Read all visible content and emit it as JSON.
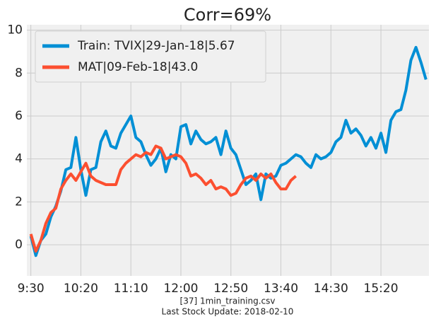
{
  "chart_data": {
    "type": "line",
    "title": "Corr=69%",
    "xlim": [
      566,
      968
    ],
    "ylim": [
      -1.45,
      10.25
    ],
    "xticks": [
      {
        "value": 570,
        "label": "9:30"
      },
      {
        "value": 620,
        "label": "10:20"
      },
      {
        "value": 670,
        "label": "11:10"
      },
      {
        "value": 720,
        "label": "12:00"
      },
      {
        "value": 770,
        "label": "12:50"
      },
      {
        "value": 820,
        "label": "13:40"
      },
      {
        "value": 870,
        "label": "14:30"
      },
      {
        "value": 920,
        "label": "15:20"
      }
    ],
    "yticks": [
      0,
      2,
      4,
      6,
      8,
      10
    ],
    "grid": true,
    "legend": "upper left",
    "series": [
      {
        "name": "Train: TVIX|29-Jan-18|5.67",
        "color": "#008fd5",
        "x": [
          570,
          575,
          580,
          585,
          590,
          595,
          600,
          605,
          610,
          615,
          620,
          625,
          630,
          635,
          640,
          645,
          650,
          655,
          660,
          665,
          670,
          675,
          680,
          685,
          690,
          695,
          700,
          705,
          710,
          715,
          720,
          725,
          730,
          735,
          740,
          745,
          750,
          755,
          760,
          765,
          770,
          775,
          780,
          785,
          790,
          795,
          800,
          805,
          810,
          815,
          820,
          825,
          830,
          835,
          840,
          845,
          850,
          855,
          860,
          865,
          870,
          875,
          880,
          885,
          890,
          895,
          900,
          905,
          910,
          915,
          920,
          925,
          930,
          935,
          940,
          945,
          950,
          955,
          960,
          965
        ],
        "values": [
          0.4,
          -0.5,
          0.2,
          0.5,
          1.3,
          1.8,
          2.5,
          3.5,
          3.6,
          5.0,
          3.5,
          2.3,
          3.5,
          3.6,
          4.8,
          5.3,
          4.6,
          4.5,
          5.2,
          5.6,
          6.0,
          5.0,
          4.8,
          4.2,
          3.7,
          4.0,
          4.5,
          3.4,
          4.2,
          4.0,
          5.5,
          5.6,
          4.7,
          5.3,
          4.9,
          4.7,
          4.8,
          5.0,
          4.2,
          5.3,
          4.5,
          4.2,
          3.5,
          2.8,
          3.0,
          3.3,
          2.1,
          3.3,
          3.1,
          3.2,
          3.7,
          3.8,
          4.0,
          4.2,
          4.1,
          3.8,
          3.6,
          4.2,
          4.0,
          4.1,
          4.3,
          4.8,
          5.0,
          5.8,
          5.2,
          5.4,
          5.1,
          4.6,
          5.0,
          4.5,
          5.2,
          4.3,
          5.8,
          6.2,
          6.3,
          7.2,
          8.6,
          9.2,
          8.5,
          7.7
        ]
      },
      {
        "name": "MAT|09-Feb-18|43.0",
        "color": "#fc4f30",
        "x": [
          570,
          575,
          580,
          585,
          590,
          595,
          600,
          605,
          610,
          615,
          620,
          625,
          630,
          635,
          640,
          645,
          650,
          655,
          660,
          665,
          670,
          675,
          680,
          685,
          690,
          695,
          700,
          705,
          710,
          715,
          720,
          725,
          730,
          735,
          740,
          745,
          750,
          755,
          760,
          765,
          770,
          775,
          780,
          785,
          790,
          795,
          800,
          805,
          810,
          815,
          820,
          825,
          830,
          835
        ],
        "values": [
          0.5,
          -0.3,
          0.2,
          1.0,
          1.5,
          1.7,
          2.6,
          3.0,
          3.3,
          3.0,
          3.4,
          3.8,
          3.2,
          3.0,
          2.9,
          2.8,
          2.8,
          2.8,
          3.5,
          3.8,
          4.0,
          4.2,
          4.1,
          4.3,
          4.2,
          4.6,
          4.5,
          4.0,
          4.1,
          4.2,
          4.1,
          3.8,
          3.2,
          3.3,
          3.1,
          2.8,
          3.0,
          2.6,
          2.7,
          2.6,
          2.3,
          2.4,
          2.8,
          3.1,
          3.2,
          3.0,
          3.3,
          3.1,
          3.3,
          2.9,
          2.6,
          2.6,
          3.0,
          3.2
        ]
      }
    ],
    "footer": [
      "[37] 1min_training.csv",
      "Last Stock Update: 2018-02-10"
    ]
  }
}
